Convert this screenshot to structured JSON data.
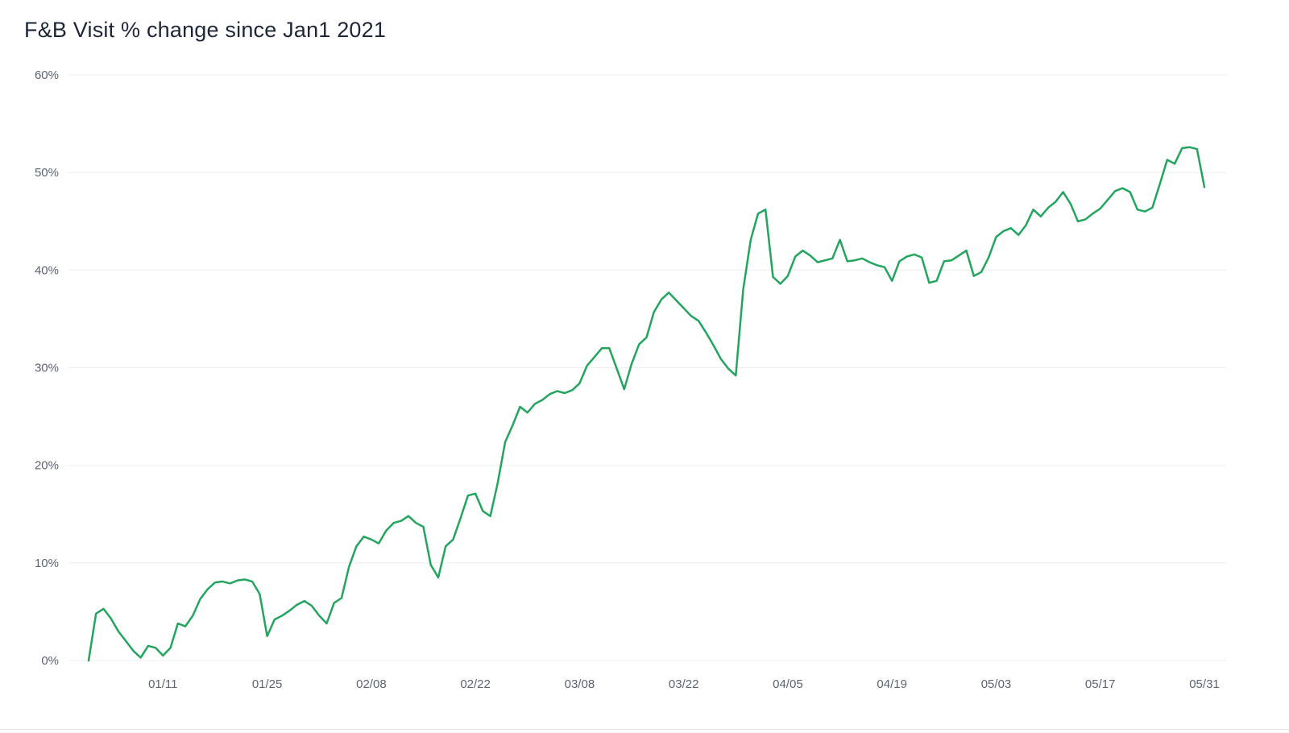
{
  "chart_data": {
    "type": "line",
    "title": "F&B Visit % change since Jan1 2021",
    "series_name": "F&B Visit % change",
    "xlabel": "",
    "ylabel": "",
    "ylim": [
      0,
      60
    ],
    "y_ticks": [
      0,
      10,
      20,
      30,
      40,
      50,
      60
    ],
    "y_tick_suffix": "%",
    "grid": true,
    "legend_position": "none",
    "line_color": "#23a55e",
    "grid_color": "#eceef1",
    "axis_label_color": "#5b6472",
    "title_color": "#1e2638",
    "x_ticks": [
      {
        "label": "01/11",
        "index": 10
      },
      {
        "label": "01/25",
        "index": 24
      },
      {
        "label": "02/08",
        "index": 38
      },
      {
        "label": "02/22",
        "index": 52
      },
      {
        "label": "03/08",
        "index": 66
      },
      {
        "label": "03/22",
        "index": 80
      },
      {
        "label": "04/05",
        "index": 94
      },
      {
        "label": "04/19",
        "index": 108
      },
      {
        "label": "05/03",
        "index": 122
      },
      {
        "label": "05/17",
        "index": 136
      },
      {
        "label": "05/31",
        "index": 150
      }
    ],
    "values": [
      0.0,
      4.8,
      5.3,
      4.3,
      3.0,
      2.0,
      1.0,
      0.3,
      1.5,
      1.3,
      0.5,
      1.3,
      3.8,
      3.5,
      4.6,
      6.3,
      7.3,
      8.0,
      8.1,
      7.9,
      8.2,
      8.3,
      8.1,
      6.8,
      2.5,
      4.2,
      4.6,
      5.1,
      5.7,
      6.1,
      5.6,
      4.6,
      3.8,
      5.9,
      6.4,
      9.6,
      11.7,
      12.7,
      12.4,
      12.0,
      13.3,
      14.1,
      14.3,
      14.8,
      14.1,
      13.7,
      9.8,
      8.5,
      11.7,
      12.4,
      14.6,
      16.9,
      17.1,
      15.3,
      14.8,
      18.2,
      22.4,
      24.1,
      26.0,
      25.4,
      26.3,
      26.7,
      27.3,
      27.6,
      27.4,
      27.7,
      28.4,
      30.2,
      31.1,
      32.0,
      32.0,
      29.9,
      27.8,
      30.4,
      32.4,
      33.1,
      35.7,
      37.0,
      37.7,
      36.9,
      36.1,
      35.3,
      34.8,
      33.6,
      32.3,
      30.9,
      29.9,
      29.2,
      38.0,
      43.1,
      45.8,
      46.2,
      39.3,
      38.6,
      39.4,
      41.4,
      42.0,
      41.5,
      40.8,
      41.0,
      41.2,
      43.1,
      40.9,
      41.0,
      41.2,
      40.8,
      40.5,
      40.3,
      38.9,
      40.9,
      41.4,
      41.6,
      41.3,
      38.7,
      38.9,
      40.9,
      41.0,
      41.5,
      42.0,
      39.4,
      39.8,
      41.3,
      43.4,
      44.0,
      44.3,
      43.6,
      44.6,
      46.2,
      45.5,
      46.4,
      47.0,
      48.0,
      46.8,
      45.0,
      45.2,
      45.8,
      46.3,
      47.2,
      48.1,
      48.4,
      48.0,
      46.2,
      46.0,
      46.4,
      48.8,
      51.3,
      50.9,
      52.5,
      52.6,
      52.4,
      48.5
    ]
  }
}
